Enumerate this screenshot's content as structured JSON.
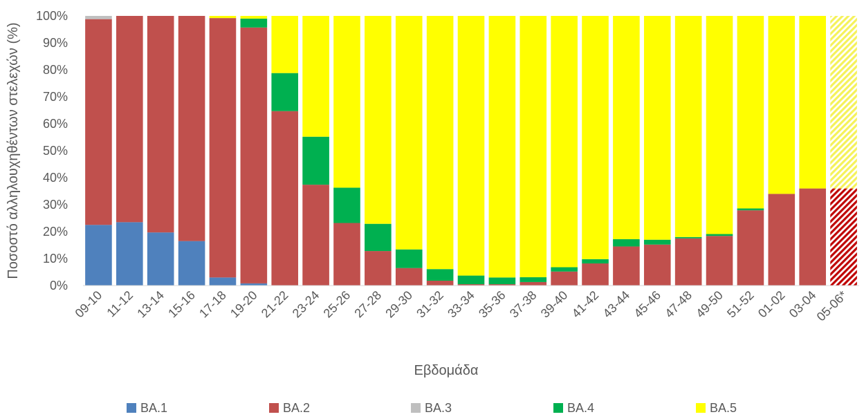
{
  "chart_data": {
    "type": "bar",
    "stacked": true,
    "normalized": true,
    "title": "",
    "xlabel": "Εβδομάδα",
    "ylabel": "Ποσοστό αλληλουχηθέντων στελεχών (%)",
    "ylim": [
      0,
      100
    ],
    "yticks": [
      "0%",
      "10%",
      "20%",
      "30%",
      "40%",
      "50%",
      "60%",
      "70%",
      "80%",
      "90%",
      "100%"
    ],
    "grid": false,
    "legend_position": "bottom",
    "categories": [
      "09-10",
      "11-12",
      "13-14",
      "15-16",
      "17-18",
      "19-20",
      "21-22",
      "23-24",
      "25-26",
      "27-28",
      "29-30",
      "31-32",
      "33-34",
      "35-36",
      "37-38",
      "39-40",
      "41-42",
      "43-44",
      "45-46",
      "47-48",
      "49-50",
      "51-52",
      "01-02",
      "03-04",
      "05-06*"
    ],
    "hatched_categories": [
      "05-06*"
    ],
    "series": [
      {
        "name": "BA.1",
        "color": "#4F81BD",
        "values": [
          22.5,
          23.5,
          19.7,
          16.5,
          3.0,
          0.8,
          0,
          0,
          0,
          0,
          0,
          0,
          0,
          0,
          0,
          0,
          0,
          0,
          0,
          0,
          0,
          0,
          0,
          0,
          0
        ]
      },
      {
        "name": "BA.2",
        "color": "#C0504D",
        "values": [
          76.3,
          76.5,
          80.3,
          83.5,
          96.2,
          94.9,
          64.7,
          37.4,
          23.2,
          12.8,
          6.5,
          1.8,
          0.5,
          0.5,
          1.3,
          5.2,
          8.2,
          14.5,
          15.2,
          17.5,
          18.4,
          27.9,
          34.0,
          36.0,
          36.0
        ]
      },
      {
        "name": "BA.3",
        "color": "#BFBFBF",
        "values": [
          1.2,
          0,
          0,
          0,
          0,
          0,
          0,
          0,
          0,
          0,
          0,
          0,
          0,
          0,
          0,
          0,
          0,
          0,
          0,
          0,
          0,
          0,
          0,
          0,
          0
        ]
      },
      {
        "name": "BA.4",
        "color": "#00B050",
        "values": [
          0,
          0,
          0,
          0,
          0,
          3.3,
          14.1,
          17.8,
          13.1,
          10.1,
          6.9,
          4.3,
          3.2,
          2.5,
          1.8,
          1.6,
          1.6,
          2.7,
          1.8,
          0.5,
          0.7,
          0.7,
          0,
          0,
          0
        ]
      },
      {
        "name": "BA.5",
        "color": "#FFFF00",
        "values": [
          0,
          0,
          0,
          0,
          0.8,
          1.0,
          21.2,
          44.8,
          63.7,
          77.1,
          86.6,
          93.9,
          96.3,
          97.0,
          96.9,
          93.2,
          90.2,
          82.8,
          83.0,
          82.0,
          80.9,
          71.4,
          66.0,
          64.0,
          64.0
        ]
      }
    ]
  }
}
